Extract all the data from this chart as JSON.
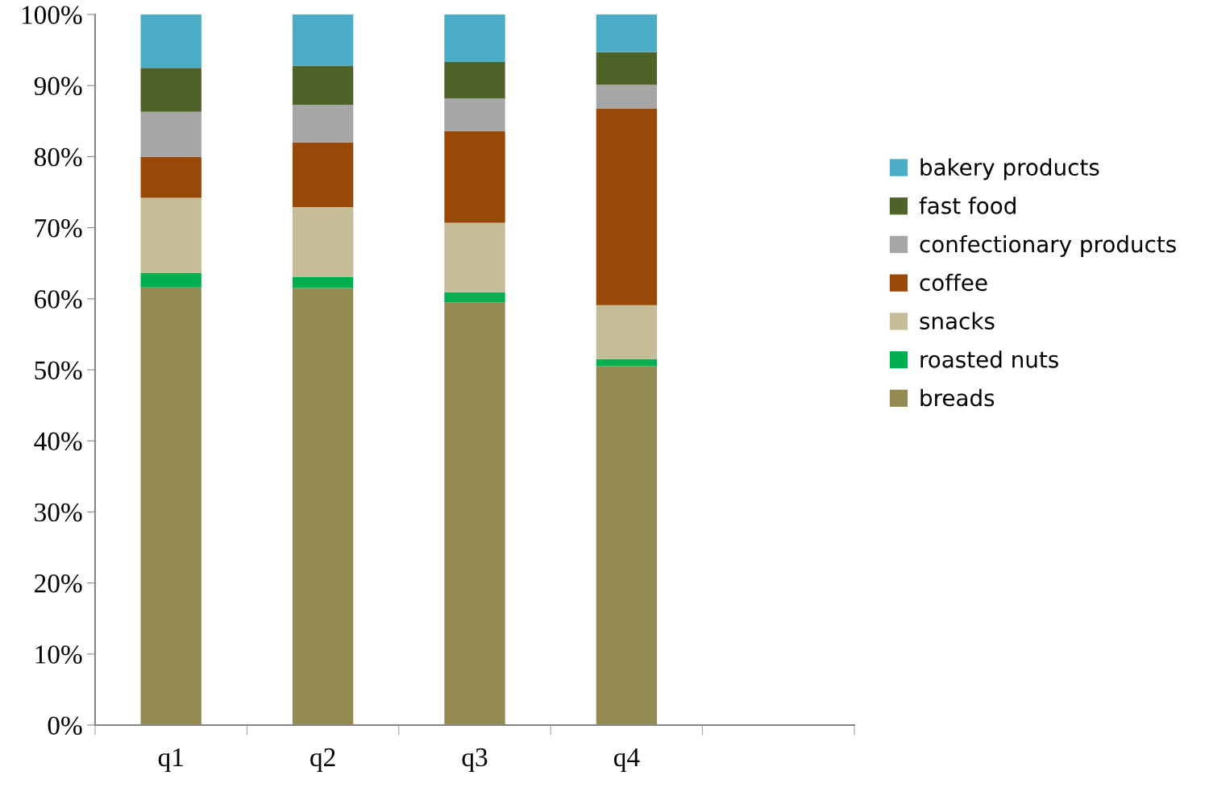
{
  "chart_data": {
    "type": "bar",
    "stacked": true,
    "categories": [
      "q1",
      "q2",
      "q3",
      "q4",
      null
    ],
    "series": [
      {
        "name": "breads",
        "color": "#948a54",
        "values": [
          61.6,
          61.5,
          59.5,
          50.5,
          null
        ]
      },
      {
        "name": "roasted nuts",
        "color": "#00b050",
        "values": [
          2.0,
          1.6,
          1.4,
          1.0,
          null
        ]
      },
      {
        "name": "snacks",
        "color": "#c4bd97",
        "values": [
          10.6,
          9.8,
          9.8,
          7.6,
          null
        ]
      },
      {
        "name": "coffee",
        "color": "#984807",
        "values": [
          5.8,
          9.1,
          12.9,
          27.7,
          null
        ]
      },
      {
        "name": "confectionary products",
        "color": "#a6a6a6",
        "values": [
          6.3,
          5.3,
          4.6,
          3.3,
          null
        ]
      },
      {
        "name": "fast food",
        "color": "#4f6228",
        "values": [
          6.2,
          5.5,
          5.1,
          4.6,
          null
        ]
      },
      {
        "name": "bakery products",
        "color": "#4bacc6",
        "values": [
          7.5,
          7.2,
          6.7,
          5.3,
          null
        ]
      }
    ],
    "ylim": [
      0,
      100
    ],
    "yticks": [
      {
        "value": 0,
        "label": "0%"
      },
      {
        "value": 10,
        "label": "10%"
      },
      {
        "value": 20,
        "label": "20%"
      },
      {
        "value": 30,
        "label": "30%"
      },
      {
        "value": 40,
        "label": "40%"
      },
      {
        "value": 50,
        "label": "50%"
      },
      {
        "value": 60,
        "label": "60%"
      },
      {
        "value": 70,
        "label": "70%"
      },
      {
        "value": 80,
        "label": "80%"
      },
      {
        "value": 90,
        "label": "90%"
      },
      {
        "value": 100,
        "label": "100%"
      }
    ],
    "grid": false,
    "legend": "right"
  }
}
